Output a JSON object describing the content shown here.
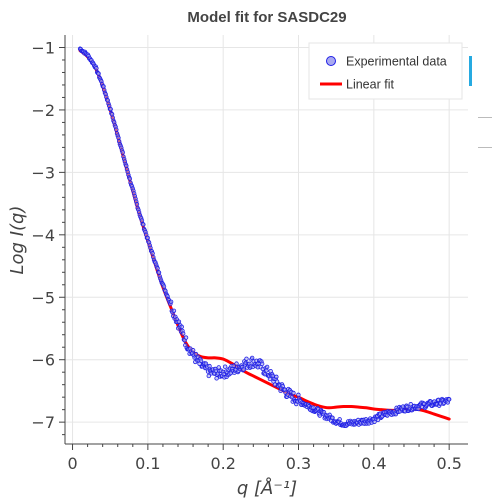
{
  "chart_data": {
    "type": "scatter",
    "title": "Model fit for SASDC29",
    "xlabel": "q [Å⁻¹]",
    "ylabel": "Log I(q)",
    "xlim": [
      -0.01,
      0.525
    ],
    "ylim": [
      -7.35,
      -0.8
    ],
    "xticks": [
      0,
      0.1,
      0.2,
      0.3,
      0.4,
      0.5
    ],
    "xtick_labels": [
      "0",
      "0.1",
      "0.2",
      "0.3",
      "0.4",
      "0.5"
    ],
    "yticks": [
      -1,
      -2,
      -3,
      -4,
      -5,
      -6,
      -7
    ],
    "ytick_labels": [
      "−1",
      "−2",
      "−3",
      "−4",
      "−5",
      "−6",
      "−7"
    ],
    "grid": true,
    "legend_position": "top-right",
    "series": [
      {
        "name": "Experimental data",
        "kind": "markers",
        "color": "#1f1fe6",
        "fill": "#a9a9f0",
        "x": [
          0.01,
          0.02,
          0.03,
          0.04,
          0.05,
          0.06,
          0.07,
          0.08,
          0.09,
          0.1,
          0.11,
          0.12,
          0.13,
          0.14,
          0.15,
          0.16,
          0.17,
          0.18,
          0.19,
          0.2,
          0.21,
          0.22,
          0.23,
          0.24,
          0.25,
          0.26,
          0.27,
          0.28,
          0.29,
          0.3,
          0.31,
          0.32,
          0.33,
          0.34,
          0.35,
          0.36,
          0.37,
          0.38,
          0.39,
          0.4,
          0.41,
          0.42,
          0.43,
          0.44,
          0.45,
          0.46,
          0.47,
          0.48,
          0.49,
          0.5
        ],
        "y": [
          -1.02,
          -1.12,
          -1.3,
          -1.6,
          -1.98,
          -2.4,
          -2.85,
          -3.28,
          -3.7,
          -4.08,
          -4.45,
          -4.8,
          -5.1,
          -5.4,
          -5.7,
          -5.92,
          -6.08,
          -6.18,
          -6.22,
          -6.2,
          -6.18,
          -6.12,
          -6.06,
          -6.03,
          -6.1,
          -6.22,
          -6.35,
          -6.48,
          -6.58,
          -6.65,
          -6.72,
          -6.78,
          -6.86,
          -6.92,
          -6.98,
          -7.02,
          -7.02,
          -7.0,
          -6.98,
          -6.95,
          -6.9,
          -6.85,
          -6.82,
          -6.78,
          -6.76,
          -6.74,
          -6.72,
          -6.7,
          -6.68,
          -6.66
        ]
      },
      {
        "name": "Linear fit",
        "kind": "line",
        "color": "#ff0000",
        "x": [
          0.01,
          0.02,
          0.03,
          0.04,
          0.05,
          0.06,
          0.07,
          0.08,
          0.09,
          0.1,
          0.11,
          0.12,
          0.13,
          0.14,
          0.15,
          0.16,
          0.17,
          0.18,
          0.19,
          0.2,
          0.21,
          0.22,
          0.23,
          0.24,
          0.25,
          0.26,
          0.27,
          0.28,
          0.29,
          0.3,
          0.31,
          0.32,
          0.33,
          0.34,
          0.35,
          0.36,
          0.37,
          0.38,
          0.39,
          0.4,
          0.41,
          0.42,
          0.43,
          0.44,
          0.45,
          0.46,
          0.47,
          0.48,
          0.49,
          0.5
        ],
        "y": [
          -1.05,
          -1.15,
          -1.32,
          -1.62,
          -2.0,
          -2.42,
          -2.87,
          -3.3,
          -3.72,
          -4.1,
          -4.48,
          -4.84,
          -5.15,
          -5.45,
          -5.72,
          -5.88,
          -5.95,
          -5.97,
          -5.97,
          -5.99,
          -6.05,
          -6.12,
          -6.2,
          -6.26,
          -6.32,
          -6.38,
          -6.44,
          -6.5,
          -6.56,
          -6.6,
          -6.66,
          -6.71,
          -6.75,
          -6.77,
          -6.76,
          -6.75,
          -6.75,
          -6.76,
          -6.77,
          -6.79,
          -6.8,
          -6.81,
          -6.81,
          -6.8,
          -6.79,
          -6.8,
          -6.83,
          -6.87,
          -6.91,
          -6.95
        ]
      }
    ]
  },
  "colors": {
    "grid": "#e6e6e6",
    "axis": "#444444",
    "toolbar_accent": "#26aae1",
    "toolbar_muted": "#bbbbbb"
  }
}
